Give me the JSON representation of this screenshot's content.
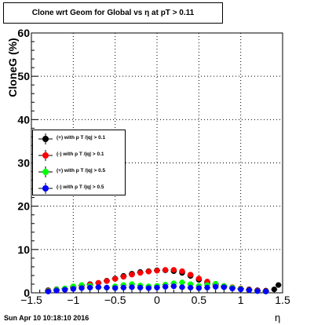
{
  "chart_data": {
    "type": "scatter",
    "title": "Clone wrt Geom for Global vs   η at pT > 0.11",
    "xlabel": "η",
    "ylabel": "CloneG (%)",
    "xlim": [
      -1.5,
      1.5
    ],
    "ylim": [
      0,
      60
    ],
    "x_ticks": [
      -1.5,
      -1,
      -0.5,
      0,
      0.5,
      1,
      1.5
    ],
    "x_tick_labels": [
      "−1.5",
      "−1",
      "−0.5",
      "0",
      "0.5",
      "1",
      "1.5"
    ],
    "y_ticks": [
      0,
      10,
      20,
      30,
      40,
      50,
      60
    ],
    "y_tick_labels": [
      "0",
      "10",
      "20",
      "30",
      "40",
      "50",
      "60"
    ],
    "grid": true,
    "legend_position": "left-middle",
    "series": [
      {
        "name": "(+) with p T /|q| > 0.1",
        "color": "#000000",
        "x": [
          -1.3,
          -1.2,
          -1.1,
          -1.0,
          -0.9,
          -0.8,
          -0.7,
          -0.6,
          -0.5,
          -0.4,
          -0.3,
          -0.2,
          -0.1,
          0.0,
          0.1,
          0.2,
          0.3,
          0.4,
          0.5,
          0.6,
          0.7,
          0.8,
          0.9,
          1.0,
          1.1,
          1.2,
          1.3,
          1.4,
          1.45
        ],
        "y": [
          0.6,
          0.8,
          1.0,
          1.3,
          1.7,
          2.0,
          2.3,
          2.8,
          3.3,
          3.9,
          4.4,
          4.8,
          5.0,
          5.2,
          5.2,
          5.0,
          4.6,
          3.9,
          3.0,
          2.3,
          1.8,
          1.4,
          1.2,
          1.0,
          0.8,
          0.6,
          0.5,
          0.8,
          1.8
        ]
      },
      {
        "name": "(-) with p T /|q| > 0.1",
        "color": "#ff0000",
        "x": [
          -1.3,
          -1.2,
          -1.1,
          -1.0,
          -0.9,
          -0.8,
          -0.7,
          -0.6,
          -0.5,
          -0.4,
          -0.3,
          -0.2,
          -0.1,
          0.0,
          0.1,
          0.2,
          0.3,
          0.4,
          0.5,
          0.6,
          0.7,
          0.8,
          0.9,
          1.0,
          1.1,
          1.2,
          1.3
        ],
        "y": [
          0.5,
          0.7,
          0.9,
          1.2,
          1.6,
          1.9,
          2.3,
          2.7,
          3.2,
          3.7,
          4.2,
          4.6,
          4.9,
          5.1,
          5.3,
          5.3,
          5.0,
          4.2,
          3.3,
          2.6,
          2.0,
          1.6,
          1.3,
          1.0,
          0.7,
          0.5,
          0.4
        ]
      },
      {
        "name": "(+) with p T /|q| > 0.5",
        "color": "#00ff00",
        "x": [
          -1.3,
          -1.2,
          -1.1,
          -1.0,
          -0.9,
          -0.8,
          -0.7,
          -0.6,
          -0.5,
          -0.4,
          -0.3,
          -0.2,
          -0.1,
          0.0,
          0.1,
          0.2,
          0.3,
          0.4,
          0.5,
          0.6,
          0.7,
          0.8,
          0.9,
          1.0,
          1.1,
          1.2,
          1.3
        ],
        "y": [
          0.4,
          0.7,
          1.0,
          1.5,
          1.8,
          1.6,
          1.3,
          1.2,
          1.5,
          1.8,
          2.0,
          1.7,
          1.5,
          1.6,
          1.9,
          2.2,
          2.4,
          2.0,
          1.6,
          1.8,
          2.1,
          1.6,
          1.2,
          0.9,
          0.6,
          0.4,
          0.3
        ]
      },
      {
        "name": "(-) with p T /|q| > 0.5",
        "color": "#0000ff",
        "x": [
          -1.3,
          -1.2,
          -1.1,
          -1.0,
          -0.9,
          -0.8,
          -0.7,
          -0.6,
          -0.5,
          -0.4,
          -0.3,
          -0.2,
          -0.1,
          0.0,
          0.1,
          0.2,
          0.3,
          0.4,
          0.5,
          0.6,
          0.7,
          0.8,
          0.9,
          1.0,
          1.1,
          1.2,
          1.3
        ],
        "y": [
          0.3,
          0.5,
          0.7,
          0.9,
          1.1,
          1.2,
          1.3,
          1.2,
          1.1,
          1.2,
          1.3,
          1.2,
          1.1,
          1.2,
          1.4,
          1.5,
          1.3,
          1.2,
          1.1,
          1.2,
          1.4,
          1.3,
          1.0,
          0.8,
          0.6,
          0.4,
          0.3
        ]
      }
    ]
  },
  "footer": {
    "timestamp": "Sun Apr 10 10:18:10 2016"
  }
}
